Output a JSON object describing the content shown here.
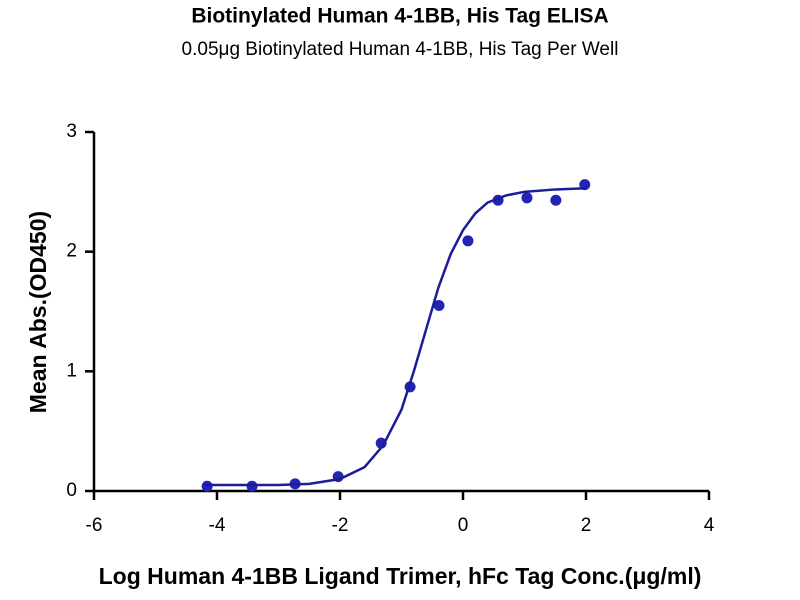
{
  "chart_data": {
    "type": "scatter",
    "title": "Biotinylated Human 4-1BB, His Tag ELISA",
    "subtitle": "0.05μg Biotinylated Human 4-1BB, His Tag Per Well",
    "x_label": "Log Human 4-1BB Ligand Trimer, hFc Tag Conc.(μg/ml)",
    "y_label": "Mean Abs.(OD450)",
    "xlim": [
      -6,
      4
    ],
    "ylim": [
      0,
      3
    ],
    "xticks": [
      -6,
      -4,
      -2,
      0,
      2,
      4
    ],
    "yticks": [
      0,
      1,
      2,
      3
    ],
    "grid": false,
    "series": [
      {
        "style": "markers",
        "color": "#2323b4",
        "x": [
          -4.16,
          -3.43,
          -2.73,
          -2.03,
          -1.33,
          -0.86,
          -0.39,
          0.08,
          0.57,
          1.04,
          1.51,
          1.98
        ],
        "values": [
          0.04,
          0.04,
          0.06,
          0.12,
          0.4,
          0.87,
          1.55,
          2.09,
          2.43,
          2.45,
          2.43,
          2.56
        ]
      },
      {
        "style": "line",
        "color": "#1c1c99",
        "x": [
          -4.2,
          -3,
          -2.5,
          -2,
          -1.6,
          -1.3,
          -1.0,
          -0.8,
          -0.6,
          -0.4,
          -0.2,
          0,
          0.2,
          0.4,
          0.7,
          1,
          1.5,
          2
        ],
        "values": [
          0.05,
          0.05,
          0.06,
          0.1,
          0.2,
          0.38,
          0.68,
          1.0,
          1.35,
          1.7,
          1.98,
          2.18,
          2.32,
          2.41,
          2.47,
          2.5,
          2.52,
          2.53
        ]
      }
    ]
  }
}
